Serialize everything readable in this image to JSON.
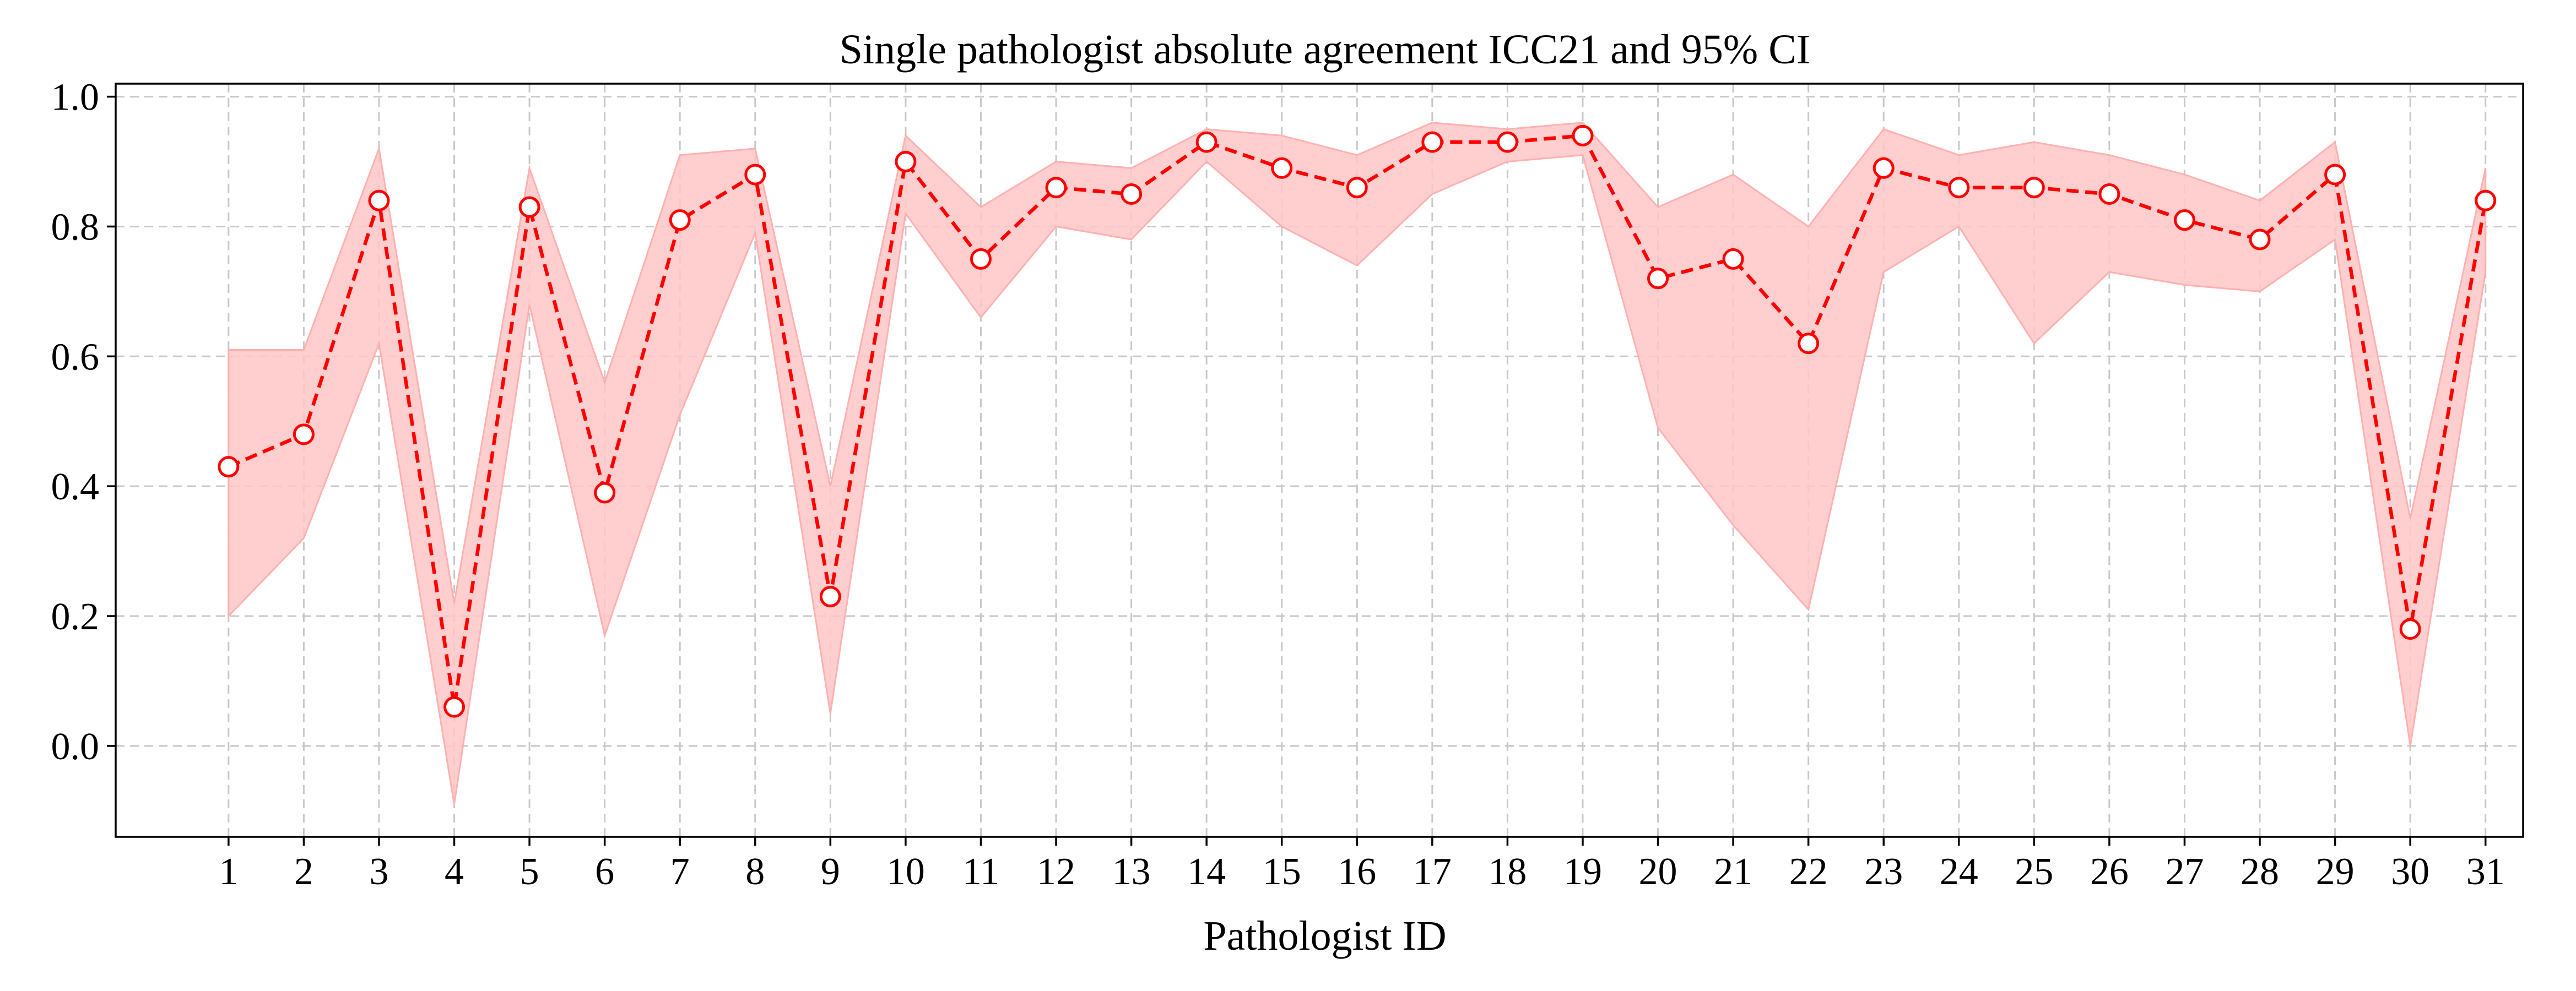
{
  "chart_data": {
    "type": "line",
    "title": "Single pathologist absolute agreement ICC21 and 95% CI",
    "xlabel": "Pathologist ID",
    "ylabel": "",
    "categories": [
      "1",
      "2",
      "3",
      "4",
      "5",
      "6",
      "7",
      "8",
      "9",
      "10",
      "11",
      "12",
      "13",
      "14",
      "15",
      "16",
      "17",
      "18",
      "19",
      "20",
      "21",
      "22",
      "23",
      "24",
      "25",
      "26",
      "27",
      "28",
      "29",
      "30",
      "31"
    ],
    "xlim": [
      -0.5,
      31.5
    ],
    "ylim": [
      -0.14,
      1.02
    ],
    "yticks": [
      "0.0",
      "0.2",
      "0.4",
      "0.6",
      "0.8",
      "1.0"
    ],
    "ytick_values": [
      0.0,
      0.2,
      0.4,
      0.6,
      0.8,
      1.0
    ],
    "grid": true,
    "series": [
      {
        "values": [
          0.43,
          0.48,
          0.84,
          0.06,
          0.83,
          0.39,
          0.81,
          0.88,
          0.23,
          0.9,
          0.75,
          0.86,
          0.85,
          0.93,
          0.89,
          0.86,
          0.93,
          0.93,
          0.94,
          0.72,
          0.75,
          0.62,
          0.89,
          0.86,
          0.86,
          0.85,
          0.81,
          0.78,
          0.88,
          0.18,
          0.84
        ],
        "ci_lower": [
          0.2,
          0.32,
          0.62,
          -0.09,
          0.68,
          0.17,
          0.51,
          0.79,
          0.05,
          0.82,
          0.66,
          0.8,
          0.78,
          0.9,
          0.8,
          0.74,
          0.85,
          0.9,
          0.91,
          0.49,
          0.34,
          0.21,
          0.73,
          0.8,
          0.62,
          0.73,
          0.71,
          0.7,
          0.78,
          0.0,
          0.73
        ],
        "ci_upper": [
          0.61,
          0.61,
          0.92,
          0.22,
          0.89,
          0.56,
          0.91,
          0.92,
          0.4,
          0.94,
          0.83,
          0.9,
          0.89,
          0.95,
          0.94,
          0.91,
          0.96,
          0.95,
          0.96,
          0.83,
          0.88,
          0.8,
          0.95,
          0.91,
          0.93,
          0.91,
          0.88,
          0.84,
          0.93,
          0.35,
          0.89
        ]
      }
    ],
    "colors": {
      "line": "#ff0000",
      "band": "#ffc6c6",
      "band_edge": "#ffb0b0",
      "marker_fill": "#ffffff"
    }
  }
}
